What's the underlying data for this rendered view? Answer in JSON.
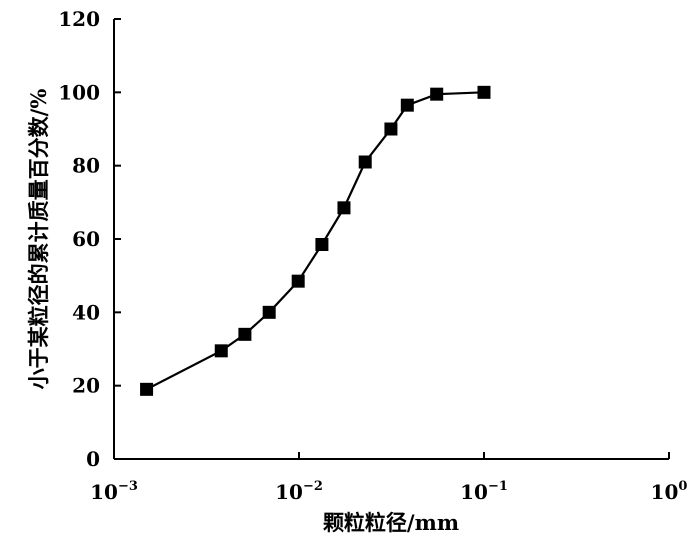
{
  "chart_data": {
    "type": "line",
    "title": "",
    "xlabel": "颗粒粒径/mm",
    "ylabel": "小于某粒径的累计质量百分数/%",
    "x_scale": "log",
    "xlim": [
      0.001,
      1
    ],
    "ylim": [
      0,
      120
    ],
    "x_ticks": [
      {
        "value": 0.001,
        "base": "10",
        "exp": "−3"
      },
      {
        "value": 0.01,
        "base": "10",
        "exp": "−2"
      },
      {
        "value": 0.1,
        "base": "10",
        "exp": "−1"
      },
      {
        "value": 1,
        "base": "10",
        "exp": "0"
      }
    ],
    "y_ticks": [
      0,
      20,
      40,
      60,
      80,
      100,
      120
    ],
    "grid": false,
    "legend": "none",
    "marker": "square",
    "color": "#000000",
    "series": [
      {
        "x": [
          0.0015,
          0.0038,
          0.0051,
          0.0069,
          0.0099,
          0.0133,
          0.0175,
          0.0228,
          0.0314,
          0.0385,
          0.0555,
          0.1
        ],
        "y": [
          19,
          29.5,
          34,
          40,
          48.5,
          58.5,
          68.5,
          81,
          90,
          96.5,
          99.5,
          100
        ]
      }
    ]
  }
}
